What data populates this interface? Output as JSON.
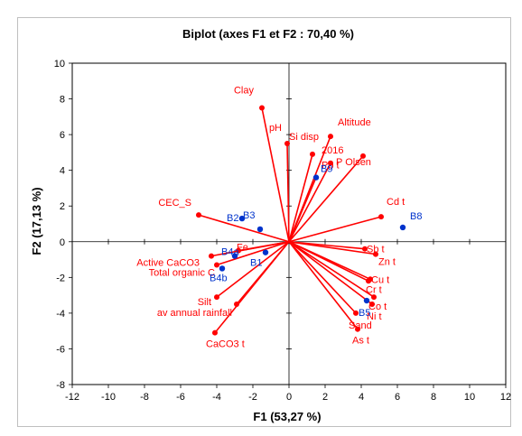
{
  "chart_data": {
    "type": "scatter",
    "title": "Biplot (axes F1 et F2 : 70,40 %)",
    "xlabel": "F1 (53,27 %)",
    "ylabel": "F2 (17,13 %)",
    "xlim": [
      -12,
      12
    ],
    "ylim": [
      -8,
      10
    ],
    "xticks": [
      -12,
      -10,
      -8,
      -6,
      -4,
      -2,
      0,
      2,
      4,
      6,
      8,
      10,
      12
    ],
    "yticks": [
      -8,
      -6,
      -4,
      -2,
      0,
      2,
      4,
      6,
      8,
      10
    ],
    "grid": false,
    "variable_color": "#ff0000",
    "observation_color": "#0033cc",
    "variables": [
      {
        "label": "Clay",
        "x": -1.5,
        "y": 7.5
      },
      {
        "label": "pH",
        "x": -0.1,
        "y": 5.5
      },
      {
        "label": "Altitude",
        "x": 2.3,
        "y": 5.9
      },
      {
        "label": "Si disp",
        "x": 1.3,
        "y": 4.9
      },
      {
        "label": "2016",
        "x": 2.3,
        "y": 4.4
      },
      {
        "label": "P Olsen",
        "x": 4.1,
        "y": 4.8
      },
      {
        "label": "Pb t",
        "x": 1.5,
        "y": 3.6
      },
      {
        "label": "CEC_S",
        "x": -5.0,
        "y": 1.5
      },
      {
        "label": "Cd t",
        "x": 5.1,
        "y": 1.4
      },
      {
        "label": "Sb t",
        "x": 4.2,
        "y": -0.4
      },
      {
        "label": "Zn t",
        "x": 4.8,
        "y": -0.7
      },
      {
        "label": "Cu t",
        "x": 4.5,
        "y": -2.1
      },
      {
        "label": "Cr t",
        "x": 4.4,
        "y": -2.2
      },
      {
        "label": "Co t",
        "x": 4.7,
        "y": -3.1
      },
      {
        "label": "Ni t",
        "x": 4.6,
        "y": -3.5
      },
      {
        "label": "Sand",
        "x": 3.7,
        "y": -4.0
      },
      {
        "label": "As t",
        "x": 3.8,
        "y": -4.9
      },
      {
        "label": "Fe",
        "x": -2.8,
        "y": -0.5
      },
      {
        "label": "Active CaCO3",
        "x": -4.3,
        "y": -0.8
      },
      {
        "label": "Total organic C",
        "x": -4.0,
        "y": -1.3
      },
      {
        "label": "Silt",
        "x": -4.0,
        "y": -3.1
      },
      {
        "label": "av annual rainfall",
        "x": -2.9,
        "y": -3.5
      },
      {
        "label": "CaCO3 t",
        "x": -4.1,
        "y": -5.1
      }
    ],
    "observations": [
      {
        "label": "B2",
        "x": -2.6,
        "y": 1.3
      },
      {
        "label": "B3",
        "x": -1.6,
        "y": 0.7
      },
      {
        "label": "B8",
        "x": 6.3,
        "y": 0.8
      },
      {
        "label": "B9",
        "x": 1.5,
        "y": 3.6
      },
      {
        "label": "B1",
        "x": -1.3,
        "y": -0.6
      },
      {
        "label": "B4a",
        "x": -3.0,
        "y": -0.8
      },
      {
        "label": "B4b",
        "x": -3.7,
        "y": -1.5
      },
      {
        "label": "B5",
        "x": 4.3,
        "y": -3.3
      }
    ]
  }
}
